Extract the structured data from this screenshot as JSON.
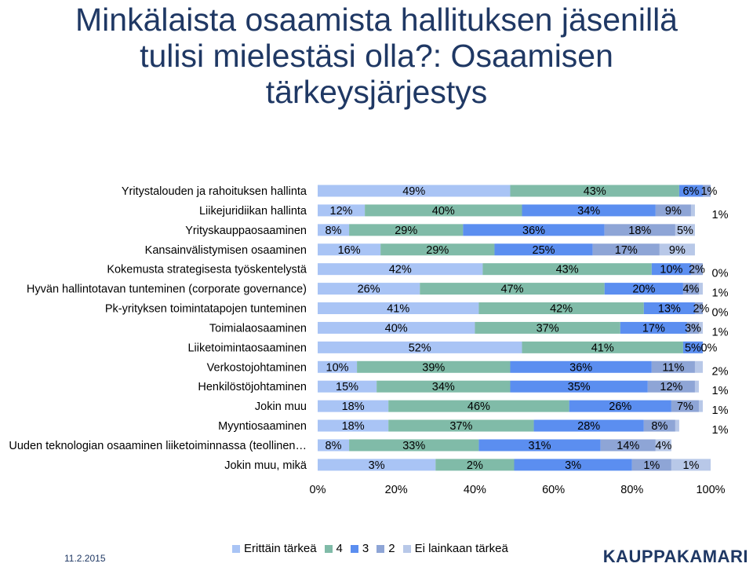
{
  "title": {
    "line1": "Minkälaista osaamista hallituksen jäsenillä",
    "line2": "tulisi mielestäsi olla?: Osaamisen",
    "line3": "tärkeysjärjestys"
  },
  "colors": [
    "#a9c4f5",
    "#80bba8",
    "#5b8ef0",
    "#8ea5d6",
    "#b8c8e8"
  ],
  "chart_data": {
    "type": "bar",
    "orientation": "horizontal",
    "stacked": true,
    "percent_stacked": true,
    "xlim": [
      0,
      100
    ],
    "xticks": [
      "0%",
      "20%",
      "40%",
      "60%",
      "80%",
      "100%"
    ],
    "categories": [
      "Yritystalouden ja rahoituksen hallinta",
      "Liikejuridiikan hallinta",
      "Yrityskauppaosaaminen",
      "Kansainvälistymisen osaaminen",
      "Kokemusta strategisesta työskentelystä",
      "Hyvän hallintotavan tunteminen (corporate governance)",
      "Pk-yrityksen toimintatapojen tunteminen",
      "Toimialaosaaminen",
      "Liiketoimintaosaaminen",
      "Verkostojohtaminen",
      "Henkilöstöjohtaminen",
      "Jokin muu",
      "Myyntiosaaminen",
      "Uuden teknologian osaaminen liiketoiminnassa (teollinen…",
      "Jokin muu, mikä"
    ],
    "series": [
      {
        "name": "Erittäin tärkeä",
        "values": [
          49,
          12,
          8,
          16,
          42,
          26,
          41,
          40,
          52,
          10,
          15,
          18,
          18,
          8,
          3
        ]
      },
      {
        "name": "4",
        "values": [
          43,
          40,
          29,
          29,
          43,
          47,
          42,
          37,
          41,
          39,
          34,
          46,
          37,
          33,
          2
        ]
      },
      {
        "name": "3",
        "values": [
          6,
          34,
          36,
          25,
          10,
          20,
          13,
          17,
          5,
          36,
          35,
          26,
          28,
          31,
          3
        ]
      },
      {
        "name": "2",
        "values": [
          1,
          9,
          18,
          17,
          2,
          4,
          2,
          3,
          0,
          11,
          12,
          7,
          8,
          14,
          1
        ]
      },
      {
        "name": "Ei lainkaan tärkeä",
        "values": [
          0,
          1,
          5,
          9,
          0,
          1,
          0,
          1,
          0,
          2,
          1,
          1,
          1,
          4,
          1
        ]
      }
    ],
    "display_widths": [
      [
        49,
        43,
        6,
        2,
        0
      ],
      [
        12,
        40,
        34,
        9,
        1
      ],
      [
        8,
        29,
        36,
        18,
        5
      ],
      [
        16,
        29,
        25,
        17,
        9
      ],
      [
        42,
        43,
        10,
        3,
        0
      ],
      [
        26,
        47,
        20,
        4,
        1
      ],
      [
        41,
        42,
        13,
        2,
        0
      ],
      [
        40,
        37,
        17,
        3,
        1
      ],
      [
        52,
        41,
        5,
        0,
        0
      ],
      [
        10,
        39,
        36,
        11,
        2
      ],
      [
        15,
        34,
        35,
        12,
        1
      ],
      [
        18,
        46,
        26,
        7,
        1
      ],
      [
        18,
        37,
        28,
        8,
        1
      ],
      [
        8,
        33,
        31,
        14,
        4
      ],
      [
        30,
        20,
        30,
        10,
        10
      ]
    ],
    "labels": [
      [
        "49%",
        "43%",
        "6%",
        "1%",
        ""
      ],
      [
        "12%",
        "40%",
        "34%",
        "9%",
        "1%"
      ],
      [
        "8%",
        "29%",
        "36%",
        "18%",
        "5%"
      ],
      [
        "16%",
        "29%",
        "25%",
        "17%",
        "9%"
      ],
      [
        "42%",
        "43%",
        "10%",
        "2%",
        "0%"
      ],
      [
        "26%",
        "47%",
        "20%",
        "4%",
        "1%"
      ],
      [
        "41%",
        "42%",
        "13%",
        "2%",
        "0%"
      ],
      [
        "40%",
        "37%",
        "17%",
        "3%",
        "1%"
      ],
      [
        "52%",
        "41%",
        "5%",
        "0%",
        ""
      ],
      [
        "10%",
        "39%",
        "36%",
        "11%",
        "2%"
      ],
      [
        "15%",
        "34%",
        "35%",
        "12%",
        "1%"
      ],
      [
        "18%",
        "46%",
        "26%",
        "7%",
        "1%"
      ],
      [
        "18%",
        "37%",
        "28%",
        "8%",
        "1%"
      ],
      [
        "8%",
        "33%",
        "31%",
        "14%",
        "4%"
      ],
      [
        "3%",
        "2%",
        "3%",
        "1%",
        "1%"
      ]
    ],
    "legend_position": "bottom",
    "grid": false
  },
  "footer": {
    "date": "11.2.2015",
    "logo": "KAUPPAKAMARI"
  }
}
